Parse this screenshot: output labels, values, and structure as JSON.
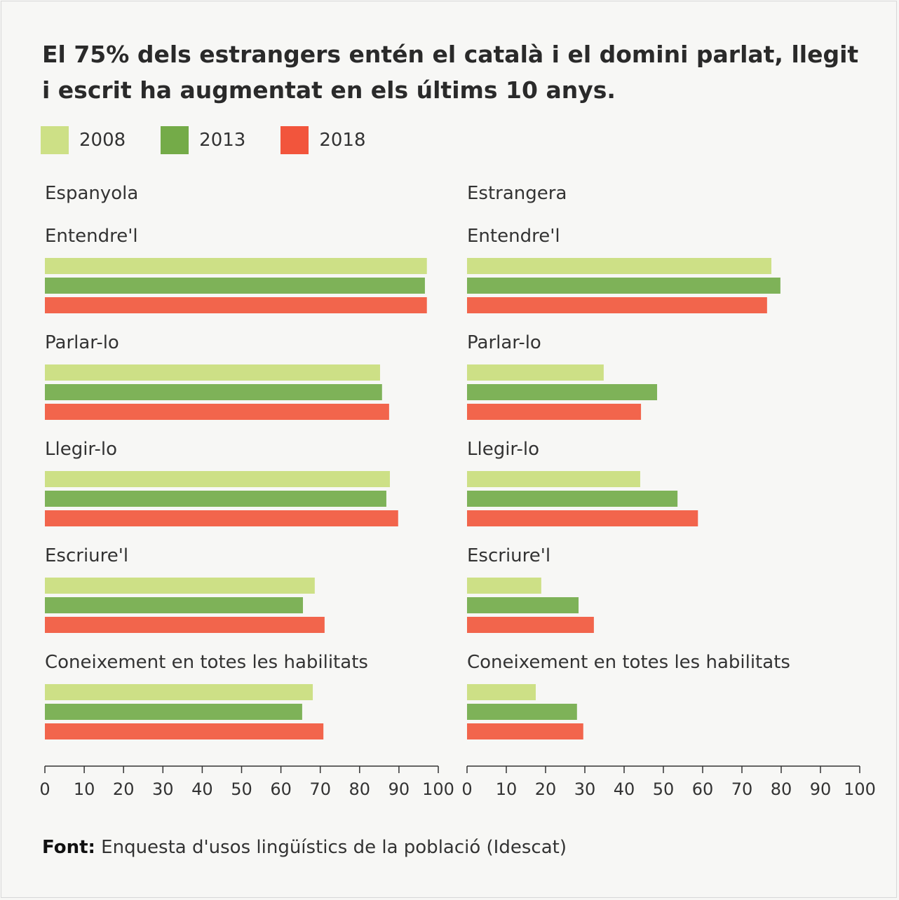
{
  "title": "El 75% dels estrangers entén el català i el domini parlat, llegit i escrit ha augmentat en els últims 10 anys.",
  "source_label": "Font:",
  "source_text": "Enquesta d'usos lingüístics de la població (Idescat)",
  "colors": {
    "2008": "#cde086",
    "2013": "#7eb258",
    "2018": "#f2654c"
  },
  "chart_data": [
    {
      "type": "bar",
      "orientation": "horizontal",
      "title": "Espanyola",
      "categories": [
        "Entendre'l",
        "Parlar-lo",
        "Llegir-lo",
        "Escriure'l",
        "Coneixement en totes les habilitats"
      ],
      "series": [
        {
          "name": "2008",
          "values": [
            97.1,
            85.2,
            87.7,
            68.6,
            68.1
          ]
        },
        {
          "name": "2013",
          "values": [
            96.6,
            85.7,
            86.8,
            65.6,
            65.4
          ]
        },
        {
          "name": "2018",
          "values": [
            97.1,
            87.5,
            89.8,
            71.1,
            70.8
          ]
        }
      ],
      "xlim": [
        0,
        100
      ],
      "xticks": [
        "0",
        "10",
        "20",
        "30",
        "40",
        "50",
        "60",
        "70",
        "80",
        "90",
        "100"
      ],
      "grid": false,
      "legend": "top-left"
    },
    {
      "type": "bar",
      "orientation": "horizontal",
      "title": "Estrangera",
      "categories": [
        "Entendre'l",
        "Parlar-lo",
        "Llegir-lo",
        "Escriure'l",
        "Coneixement en totes les habilitats"
      ],
      "series": [
        {
          "name": "2008",
          "values": [
            77.5,
            34.8,
            44.1,
            18.9,
            17.5
          ]
        },
        {
          "name": "2013",
          "values": [
            79.8,
            48.4,
            53.6,
            28.4,
            28.0
          ]
        },
        {
          "name": "2018",
          "values": [
            76.4,
            44.3,
            58.8,
            32.3,
            29.6
          ]
        }
      ],
      "xlim": [
        0,
        100
      ],
      "xticks": [
        "0",
        "10",
        "20",
        "30",
        "40",
        "50",
        "60",
        "70",
        "80",
        "90",
        "100"
      ],
      "grid": false,
      "legend": "top-left"
    }
  ]
}
